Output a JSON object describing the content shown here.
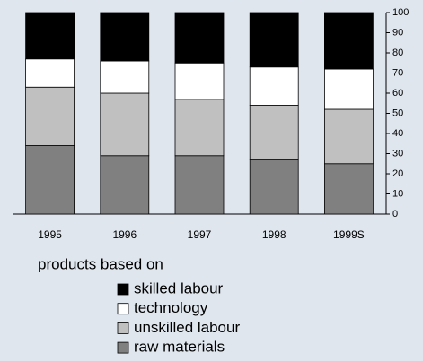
{
  "chart_data": {
    "type": "stacked_bar",
    "categories": [
      "1995",
      "1996",
      "1997",
      "1998",
      "1999S"
    ],
    "series": [
      {
        "name": "raw materials",
        "color": "#808080",
        "values": [
          34,
          29,
          29,
          27,
          25
        ]
      },
      {
        "name": "unskilled labour",
        "color": "#c0c0c0",
        "values": [
          29,
          31,
          28,
          27,
          27
        ]
      },
      {
        "name": "technology",
        "color": "#ffffff",
        "values": [
          14,
          16,
          18,
          19,
          20
        ]
      },
      {
        "name": "skilled labour",
        "color": "#000000",
        "values": [
          23,
          24,
          25,
          27,
          28
        ]
      }
    ],
    "legend_title": "products based on",
    "ylim": [
      0,
      100
    ],
    "yticks": [
      0,
      10,
      20,
      30,
      40,
      50,
      60,
      70,
      80,
      90,
      100
    ],
    "y_axis_side": "right"
  }
}
